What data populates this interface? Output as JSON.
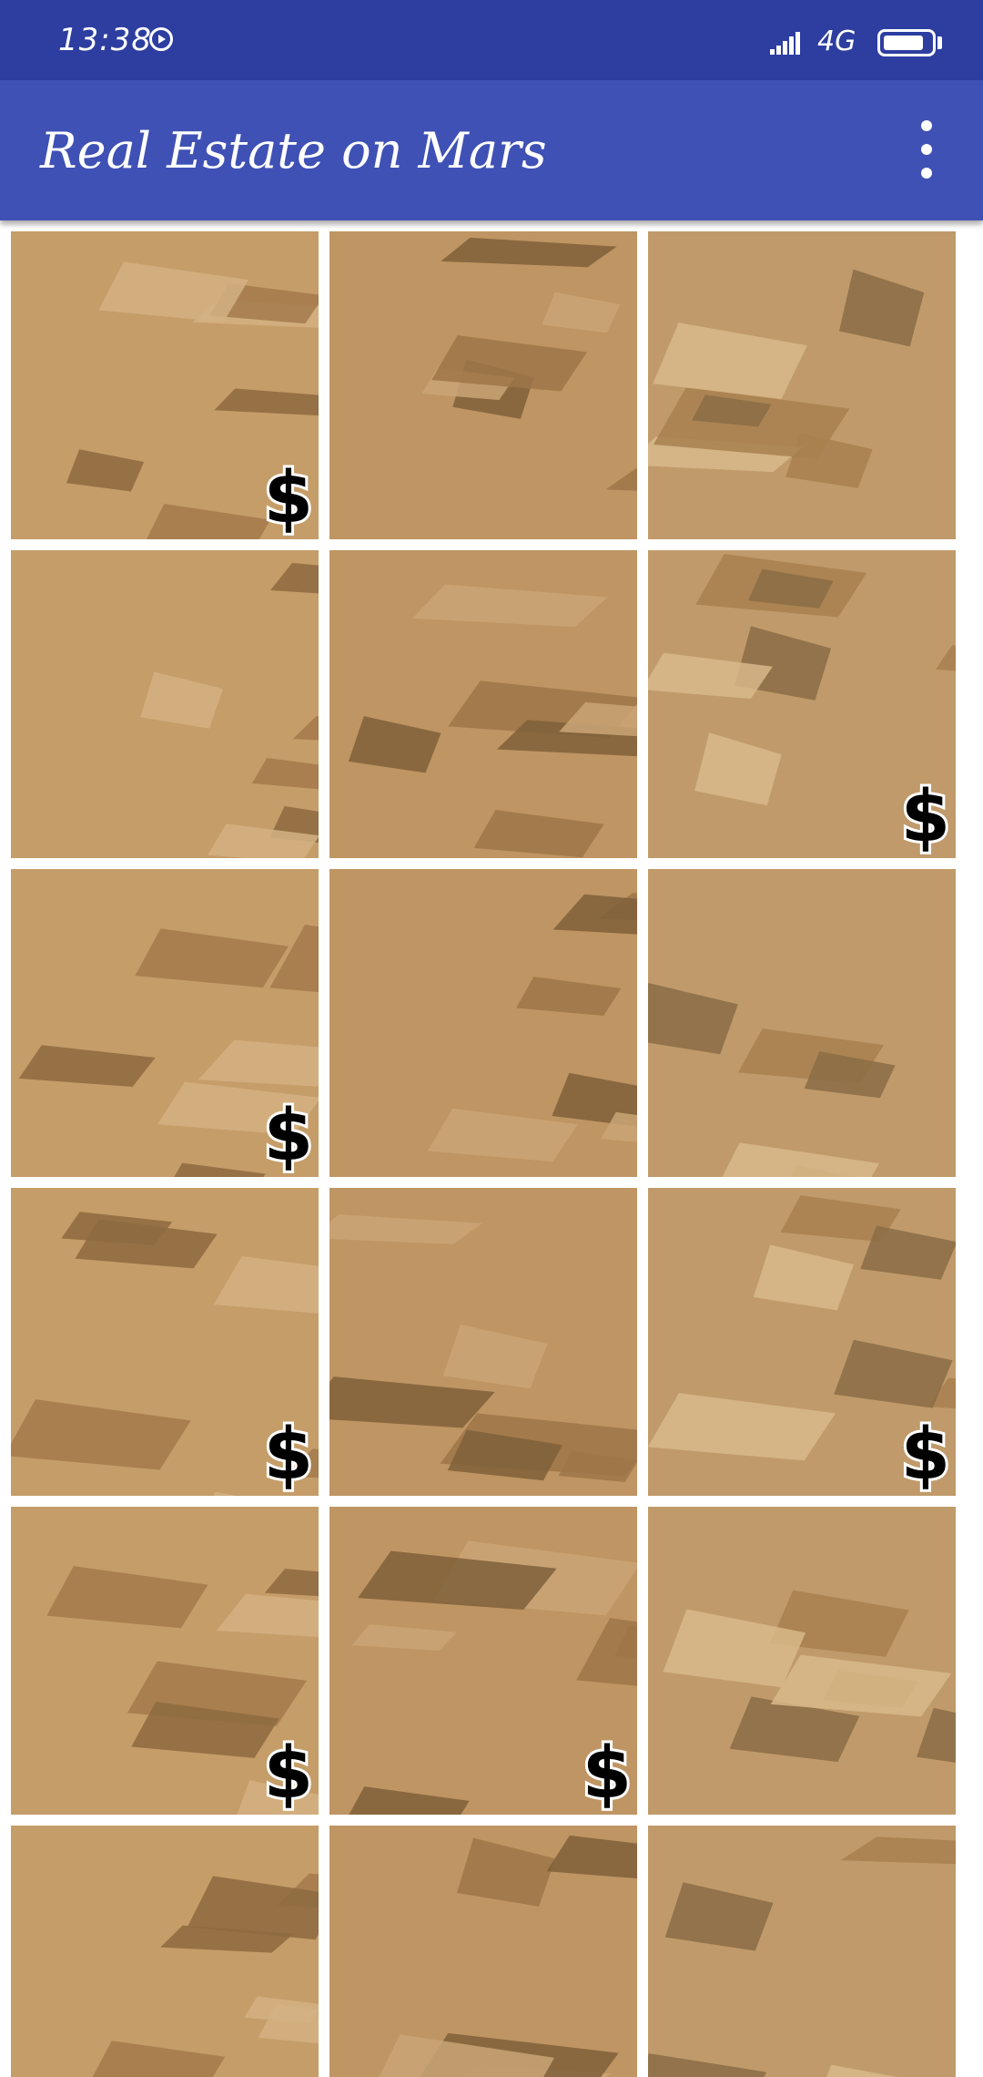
{
  "status_bar": {
    "time": "13:38",
    "network": "4G",
    "battery_level": 0.85,
    "icons": [
      "media-playing-icon",
      "signal-strength-icon",
      "battery-icon"
    ]
  },
  "app_bar": {
    "title": "Real Estate on Mars",
    "menu_icon": "more-vert-icon"
  },
  "colors": {
    "status_bar": "#2d3ea0",
    "app_bar": "#3f51b5",
    "tile_base": "#b9915e"
  },
  "listing_marker": "$",
  "listings": [
    {
      "for_sale": true
    },
    {
      "for_sale": false
    },
    {
      "for_sale": false
    },
    {
      "for_sale": false
    },
    {
      "for_sale": false
    },
    {
      "for_sale": true
    },
    {
      "for_sale": true
    },
    {
      "for_sale": false
    },
    {
      "for_sale": false
    },
    {
      "for_sale": true
    },
    {
      "for_sale": false
    },
    {
      "for_sale": true
    },
    {
      "for_sale": true
    },
    {
      "for_sale": true
    },
    {
      "for_sale": false
    },
    {
      "for_sale": false
    },
    {
      "for_sale": false
    },
    {
      "for_sale": false
    }
  ]
}
